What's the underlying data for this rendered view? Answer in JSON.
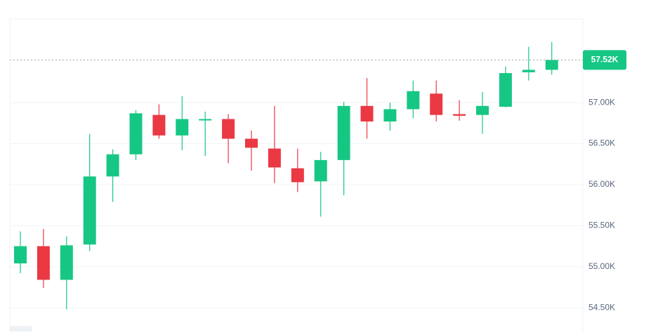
{
  "chart_data": {
    "type": "candlestick",
    "open": [
      55040,
      55250,
      54840,
      55270,
      56100,
      56370,
      56850,
      56600,
      56790,
      56800,
      56560,
      56440,
      56200,
      56040,
      56300,
      56960,
      56770,
      56920,
      57110,
      56860,
      56850,
      56950,
      57370,
      57400
    ],
    "high": [
      55430,
      55460,
      55370,
      56620,
      56430,
      56910,
      56980,
      57080,
      56890,
      56860,
      56660,
      56960,
      56440,
      56400,
      57010,
      57300,
      57000,
      57270,
      57270,
      57030,
      57130,
      57440,
      57680,
      57740
    ],
    "low": [
      54920,
      54740,
      54480,
      55190,
      55790,
      56300,
      56560,
      56420,
      56350,
      56260,
      56170,
      56020,
      55910,
      55610,
      55870,
      56560,
      56660,
      56810,
      56770,
      56780,
      56620,
      56940,
      57270,
      57340
    ],
    "close": [
      55250,
      54840,
      55260,
      56100,
      56370,
      56870,
      56600,
      56800,
      56800,
      56560,
      56450,
      56210,
      56030,
      56300,
      56960,
      56770,
      56920,
      57140,
      56850,
      56840,
      56960,
      57360,
      57400,
      57520
    ],
    "up_color": "#16c784",
    "down_color": "#ea3943",
    "ylim": [
      54210,
      58020
    ],
    "yticks": [
      {
        "value": 54500,
        "label": "54.50K"
      },
      {
        "value": 55000,
        "label": "55.00K"
      },
      {
        "value": 55500,
        "label": "55.50K"
      },
      {
        "value": 56000,
        "label": "56.00K"
      },
      {
        "value": 56500,
        "label": "56.50K"
      },
      {
        "value": 57000,
        "label": "57.00K"
      }
    ],
    "last_price": {
      "value": 57520,
      "label": "57.52K"
    },
    "grid": true
  }
}
